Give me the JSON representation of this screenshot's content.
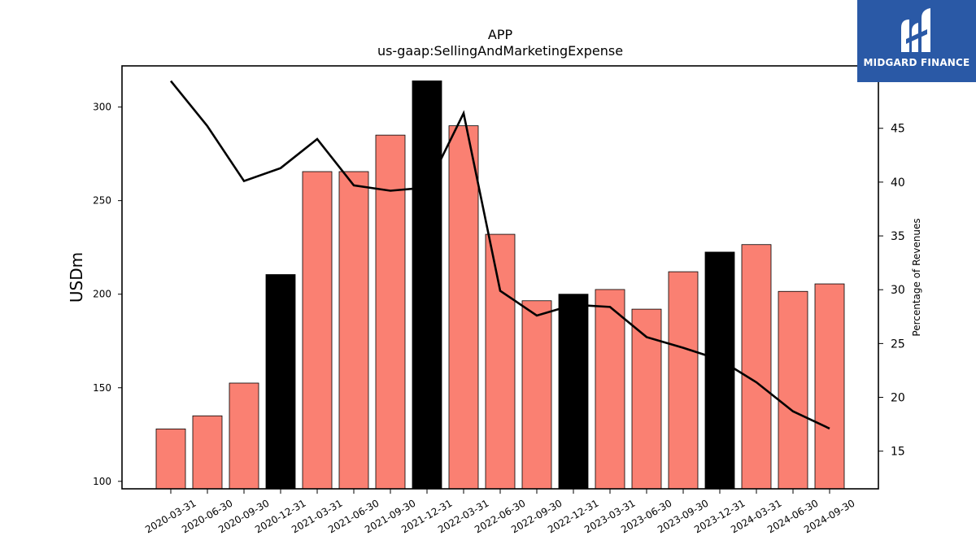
{
  "chart_data": {
    "type": "bar",
    "title": "APP",
    "subtitle": "us-gaap:SellingAndMarketingExpense",
    "ylabel": "USDm",
    "y2label": "Percentage of Revenues",
    "ylim": [
      96,
      322
    ],
    "y2lim": [
      11.5,
      50.8
    ],
    "yticks": [
      100,
      150,
      200,
      250,
      300
    ],
    "y2ticks": [
      15,
      20,
      25,
      30,
      35,
      40,
      45
    ],
    "categories": [
      "2020-03-31",
      "2020-06-30",
      "2020-09-30",
      "2020-12-31",
      "2021-03-31",
      "2021-06-30",
      "2021-09-30",
      "2021-12-31",
      "2022-03-31",
      "2022-06-30",
      "2022-09-30",
      "2022-12-31",
      "2023-03-31",
      "2023-06-30",
      "2023-09-30",
      "2023-12-31",
      "2024-03-31",
      "2024-06-30",
      "2024-09-30"
    ],
    "values": [
      128,
      135,
      152.5,
      210.5,
      265.5,
      265.5,
      285,
      314,
      290,
      232,
      196.5,
      200,
      202.5,
      192,
      212,
      222.5,
      226.5,
      201.5,
      205.5
    ],
    "bar_colors": [
      "#fa8072",
      "#fa8072",
      "#fa8072",
      "#000000",
      "#fa8072",
      "#fa8072",
      "#fa8072",
      "#000000",
      "#fa8072",
      "#fa8072",
      "#fa8072",
      "#000000",
      "#fa8072",
      "#fa8072",
      "#fa8072",
      "#000000",
      "#fa8072",
      "#fa8072",
      "#fa8072"
    ],
    "series": [
      {
        "type": "line",
        "axis": "right",
        "color": "#000000",
        "values": [
          49.4,
          45.2,
          40.1,
          41.3,
          44.0,
          39.7,
          39.2,
          39.5,
          46.4,
          29.9,
          27.6,
          28.6,
          28.4,
          25.6,
          24.6,
          23.5,
          21.4,
          18.7,
          17.1
        ]
      }
    ],
    "grid": false,
    "legend": "none"
  },
  "logo": {
    "text": "MIDGARD FINANCE",
    "background": "#2a59a6",
    "text_color": "#ffffff"
  }
}
